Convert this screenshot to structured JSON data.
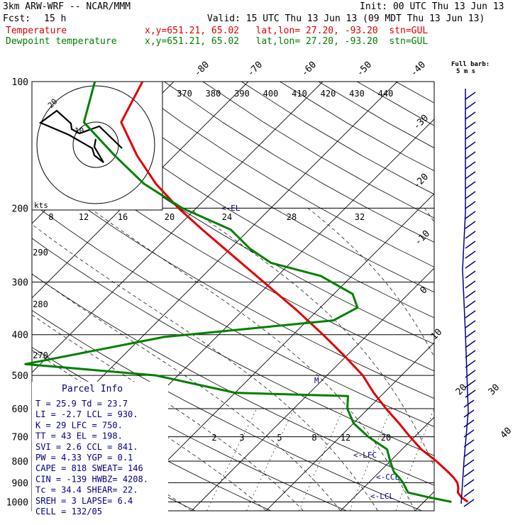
{
  "header": {
    "model": "3km ARW-WRF -- NCAR/MMM",
    "init": "Init: 00 UTC Thu 13 Jun 13",
    "fcst_label": "Fcst:",
    "fcst_value": "15 h",
    "valid": "Valid: 15 UTC Thu 13 Jun 13 (09 MDT Thu 13 Jun 13)",
    "lines": [
      {
        "name": "Temperature",
        "info": "x,y=651.21, 65.02   lat,lon= 27.20, -93.20  stn=GUL",
        "color": "#e00000"
      },
      {
        "name": "Dewpoint temperature",
        "info": "x,y=651.21, 65.02   lat,lon= 27.20, -93.20  stn=GUL",
        "color": "#008000"
      }
    ],
    "full_barb": "Full barb:",
    "full_barb_units": "5 m s"
  },
  "chart_data": {
    "type": "skew-t",
    "pressure_labels": [
      "100",
      "200",
      "300",
      "400",
      "500",
      "600",
      "700",
      "800",
      "900",
      "1000"
    ],
    "pressure_levels": [
      100,
      200,
      300,
      400,
      500,
      600,
      700,
      800,
      900,
      1000
    ],
    "temperature_labels_top": [
      "-80",
      "-70",
      "-60",
      "-50",
      "-40"
    ],
    "temperature_labels_right": [
      "-30",
      "-20",
      "-10",
      "0",
      "10",
      "20",
      "30",
      "40"
    ],
    "theta_labels": [
      "370",
      "380",
      "390",
      "400",
      "410",
      "420",
      "430",
      "440"
    ],
    "theta_labels_left": [
      "290",
      "280",
      "270"
    ],
    "mixing_ratio_labels": [
      "2",
      "3",
      "5",
      "8",
      "12",
      "20"
    ],
    "hodograph": {
      "speed_units": "kts",
      "speed_ticks": [
        "8",
        "12",
        "16",
        "20",
        "24",
        "28",
        "32"
      ],
      "ring_labels": [
        "10",
        "20"
      ]
    },
    "level_markers": [
      "<-EL",
      "<-LFC",
      "<-CCL",
      "<-LCL",
      "M"
    ],
    "temperature": {
      "name": "Temperature",
      "color": "#e00000",
      "points": [
        [
          1000,
          25.9
        ],
        [
          975,
          24.4
        ],
        [
          950,
          23.3
        ],
        [
          925,
          22.7
        ],
        [
          900,
          21.9
        ],
        [
          875,
          20.7
        ],
        [
          850,
          19.3
        ],
        [
          800,
          16.2
        ],
        [
          750,
          12.6
        ],
        [
          700,
          9.4
        ],
        [
          650,
          6.1
        ],
        [
          600,
          2.4
        ],
        [
          550,
          -1.4
        ],
        [
          500,
          -5.2
        ],
        [
          450,
          -10.2
        ],
        [
          400,
          -16.0
        ],
        [
          350,
          -22.8
        ],
        [
          300,
          -31.0
        ],
        [
          250,
          -40.7
        ],
        [
          225,
          -46.3
        ],
        [
          200,
          -52.4
        ],
        [
          175,
          -58.7
        ],
        [
          150,
          -65.0
        ],
        [
          125,
          -71.6
        ],
        [
          100,
          -74.2
        ]
      ]
    },
    "dewpoint": {
      "name": "Dewpoint temperature",
      "color": "#008000",
      "points": [
        [
          1000,
          23.7
        ],
        [
          975,
          20.0
        ],
        [
          950,
          16.6
        ],
        [
          900,
          14.6
        ],
        [
          875,
          13.4
        ],
        [
          850,
          12.0
        ],
        [
          800,
          10.0
        ],
        [
          750,
          8.0
        ],
        [
          700,
          3.8
        ],
        [
          650,
          0.0
        ],
        [
          600,
          -2.8
        ],
        [
          560,
          -4.4
        ],
        [
          550,
          -20.0
        ],
        [
          500,
          -33.0
        ],
        [
          470,
          -52.0
        ],
        [
          405,
          -37.0
        ],
        [
          370,
          -16.5
        ],
        [
          345,
          -15.0
        ],
        [
          320,
          -17.5
        ],
        [
          290,
          -24.2
        ],
        [
          270,
          -32.6
        ],
        [
          250,
          -37.3
        ],
        [
          225,
          -42.5
        ],
        [
          200,
          -51.9
        ],
        [
          175,
          -60.3
        ],
        [
          150,
          -68.0
        ],
        [
          125,
          -76.6
        ],
        [
          100,
          -80.6
        ]
      ]
    }
  },
  "parcel_info": {
    "title": "Parcel Info",
    "rows": [
      "T  =   25.9  Td =  23.7",
      "LI =   -2.7  LCL =  930.",
      "K  =     29  LFC =  750.",
      "TT =     43  EL  =  198.",
      "SVI =    2.6  CCL =  841.",
      "PW =   4.33  YGP =   0.1",
      "CAPE =   818  SWEAT=  146",
      "CIN =   -139  HWBZ= 4208.",
      "Tc =   34.4  SHEAR=  22.",
      "SREH =     3  LAPSE=  6.4",
      "CELL = 132/05"
    ]
  }
}
